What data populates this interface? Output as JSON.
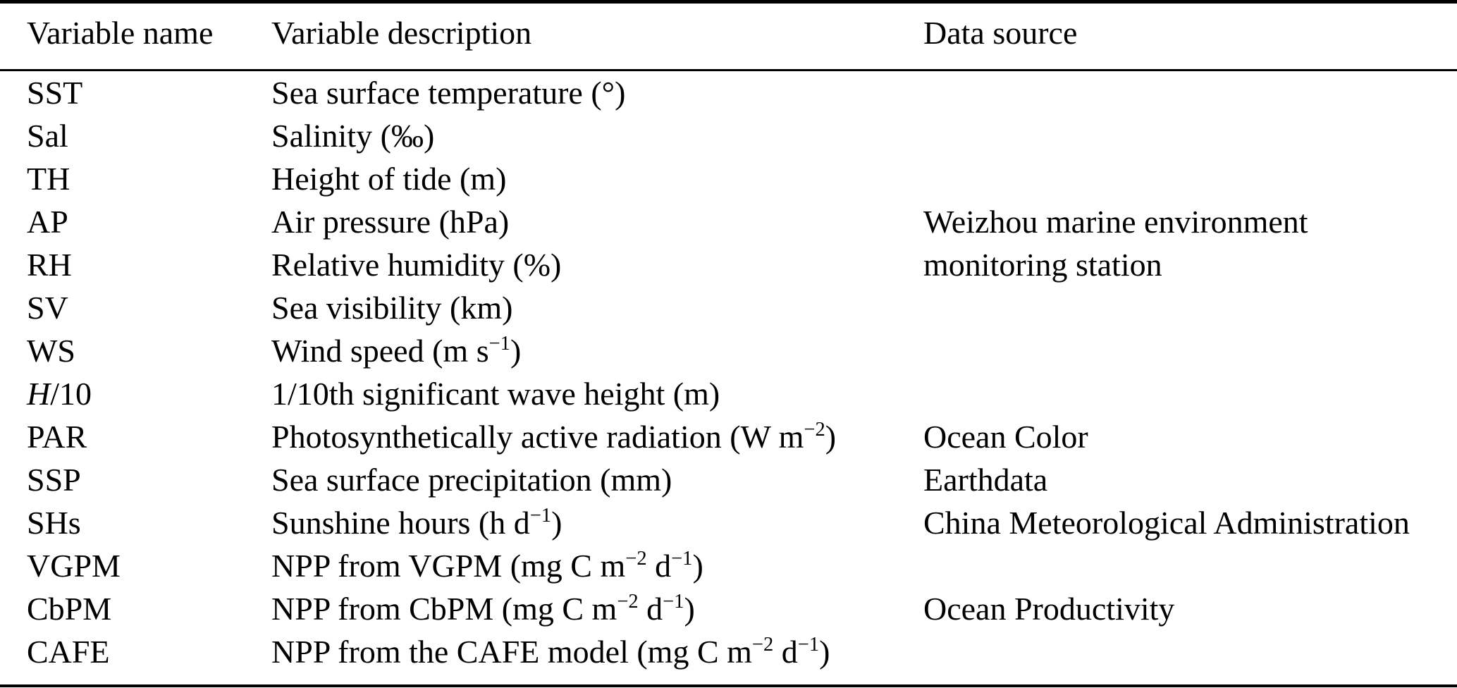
{
  "colors": {
    "background": "#ffffff",
    "text": "#000000",
    "rule": "#000000"
  },
  "table": {
    "headers": [
      {
        "label": "Variable name"
      },
      {
        "label": "Variable description"
      },
      {
        "label": "Data source"
      }
    ],
    "rows": [
      {
        "name": [
          {
            "t": "SST"
          }
        ],
        "description": [
          {
            "t": "Sea surface temperature (°)"
          }
        ],
        "source": ""
      },
      {
        "name": [
          {
            "t": "Sal"
          }
        ],
        "description": [
          {
            "t": "Salinity (‰)"
          }
        ],
        "source": ""
      },
      {
        "name": [
          {
            "t": "TH"
          }
        ],
        "description": [
          {
            "t": "Height of tide (m)"
          }
        ],
        "source": ""
      },
      {
        "name": [
          {
            "t": "AP"
          }
        ],
        "description": [
          {
            "t": "Air pressure (hPa)"
          }
        ],
        "source": "Weizhou marine environment"
      },
      {
        "name": [
          {
            "t": "RH"
          }
        ],
        "description": [
          {
            "t": "Relative humidity (%)"
          }
        ],
        "source": "monitoring station"
      },
      {
        "name": [
          {
            "t": "SV"
          }
        ],
        "description": [
          {
            "t": "Sea visibility (km)"
          }
        ],
        "source": ""
      },
      {
        "name": [
          {
            "t": "WS"
          }
        ],
        "description": [
          {
            "t": "Wind speed (m s"
          },
          {
            "sup": "−1"
          },
          {
            "t": ")"
          }
        ],
        "source": ""
      },
      {
        "name": [
          {
            "i": "H"
          },
          {
            "t": "/10"
          }
        ],
        "description": [
          {
            "t": "1/10th significant wave height (m)"
          }
        ],
        "source": ""
      },
      {
        "name": [
          {
            "t": "PAR"
          }
        ],
        "description": [
          {
            "t": "Photosynthetically active radiation (W m"
          },
          {
            "sup": "−2"
          },
          {
            "t": ")"
          }
        ],
        "source": "Ocean Color"
      },
      {
        "name": [
          {
            "t": "SSP"
          }
        ],
        "description": [
          {
            "t": "Sea surface precipitation (mm)"
          }
        ],
        "source": "Earthdata"
      },
      {
        "name": [
          {
            "t": "SHs"
          }
        ],
        "description": [
          {
            "t": "Sunshine hours (h d"
          },
          {
            "sup": "−1"
          },
          {
            "t": ")"
          }
        ],
        "source": "China Meteorological Administration"
      },
      {
        "name": [
          {
            "t": "VGPM"
          }
        ],
        "description": [
          {
            "t": "NPP from VGPM (mg C m"
          },
          {
            "sup": "−2"
          },
          {
            "t": " d"
          },
          {
            "sup": "−1"
          },
          {
            "t": ")"
          }
        ],
        "source": ""
      },
      {
        "name": [
          {
            "t": "CbPM"
          }
        ],
        "description": [
          {
            "t": "NPP from CbPM (mg C m"
          },
          {
            "sup": "−2"
          },
          {
            "t": " d"
          },
          {
            "sup": "−1"
          },
          {
            "t": ")"
          }
        ],
        "source": "Ocean Productivity"
      },
      {
        "name": [
          {
            "t": "CAFE"
          }
        ],
        "description": [
          {
            "t": "NPP from the CAFE model (mg C m"
          },
          {
            "sup": "−2"
          },
          {
            "t": " d"
          },
          {
            "sup": "−1"
          },
          {
            "t": ")"
          }
        ],
        "source": ""
      }
    ]
  }
}
